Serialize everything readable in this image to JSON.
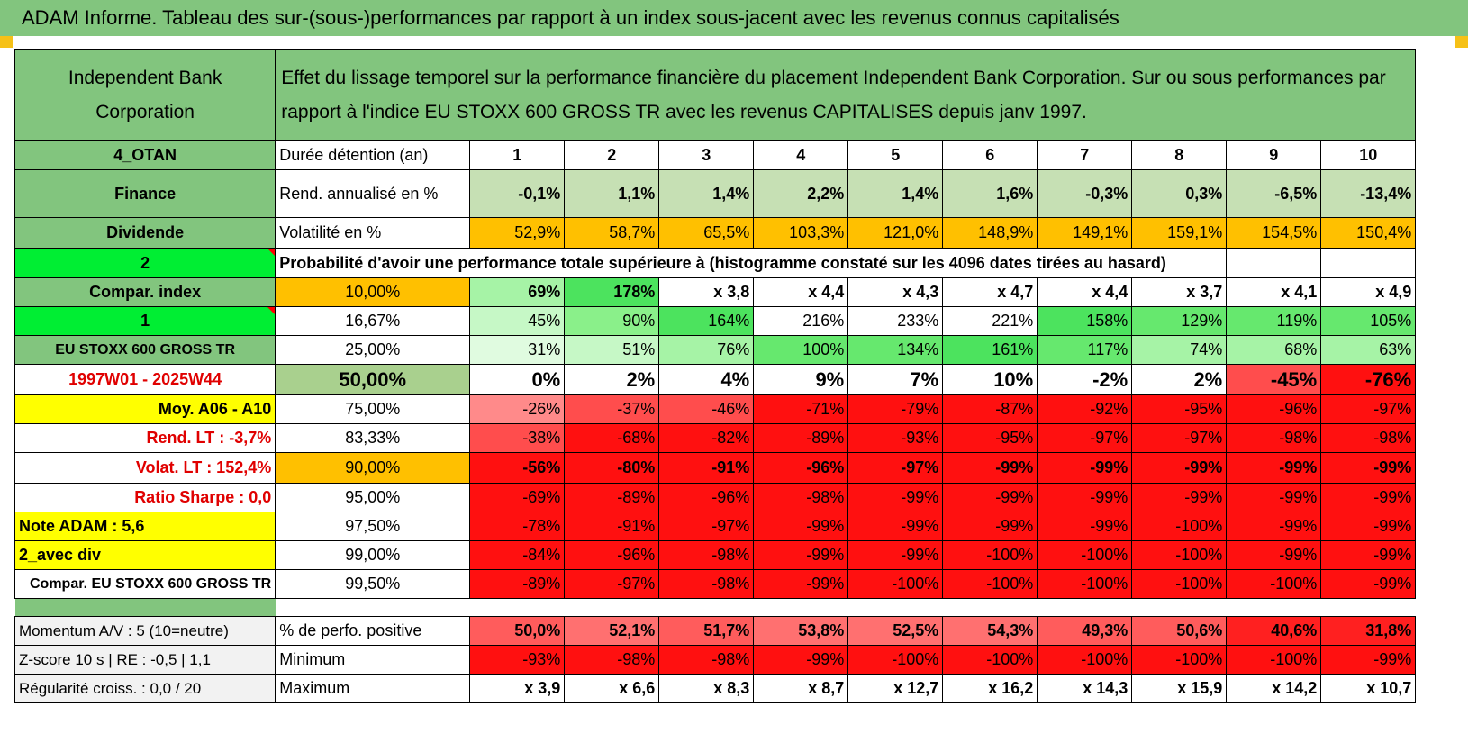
{
  "title": "ADAM Informe. Tableau des sur-(sous-)performances par rapport à un index sous-jacent avec les revenus connus capitalisés",
  "header": {
    "company": "Independent Bank Corporation",
    "description": "Effet du lissage temporel sur la performance financière du placement Independent Bank Corporation. Sur ou sous performances par rapport à l'indice EU STOXX 600 GROSS TR avec les revenus CAPITALISES depuis janv 1997."
  },
  "side": {
    "code": "4_OTAN",
    "sector": "Finance",
    "type": "Dividende",
    "num2": "2",
    "compar_index": "Compar. index",
    "num1": "1",
    "index_name": "EU STOXX 600 GROSS TR",
    "period": "1997W01 - 2025W44",
    "moy": "Moy. A06 - A10",
    "rend_lt": "Rend. LT :   -3,7%",
    "volat_lt": "Volat. LT :    152,4%",
    "sharpe": "Ratio Sharpe :    0,0",
    "note": "Note ADAM : 5,6",
    "avec_div": "2_avec div",
    "compar_full": "Compar. EU STOXX 600 GROSS TR"
  },
  "rows": {
    "duree_label": "Durée détention (an)",
    "years": [
      "1",
      "2",
      "3",
      "4",
      "5",
      "6",
      "7",
      "8",
      "9",
      "10"
    ],
    "rend_label": "Rend. annualisé en %",
    "rend": [
      "-0,1%",
      "1,1%",
      "1,4%",
      "2,2%",
      "1,4%",
      "1,6%",
      "-0,3%",
      "0,3%",
      "-6,5%",
      "-13,4%"
    ],
    "vol_label": "Volatilité en %",
    "vol": [
      "52,9%",
      "58,7%",
      "65,5%",
      "103,3%",
      "121,0%",
      "148,9%",
      "149,1%",
      "159,1%",
      "154,5%",
      "150,4%"
    ],
    "prob_label": "Probabilité d'avoir une performance totale supérieure à (histogramme constaté sur les 4096 dates tirées au hasard)"
  },
  "quantiles": [
    {
      "p": "10,00%",
      "vals": [
        "69%",
        "178%",
        "x 3,8",
        "x 4,4",
        "x 4,3",
        "x 4,7",
        "x 4,4",
        "x 3,7",
        "x 4,1",
        "x 4,9"
      ]
    },
    {
      "p": "16,67%",
      "vals": [
        "45%",
        "90%",
        "164%",
        "216%",
        "233%",
        "221%",
        "158%",
        "129%",
        "119%",
        "105%"
      ]
    },
    {
      "p": "25,00%",
      "vals": [
        "31%",
        "51%",
        "76%",
        "100%",
        "134%",
        "161%",
        "117%",
        "74%",
        "68%",
        "63%"
      ]
    },
    {
      "p": "50,00%",
      "vals": [
        "0%",
        "2%",
        "4%",
        "9%",
        "7%",
        "10%",
        "-2%",
        "2%",
        "-45%",
        "-76%"
      ]
    },
    {
      "p": "75,00%",
      "vals": [
        "-26%",
        "-37%",
        "-46%",
        "-71%",
        "-79%",
        "-87%",
        "-92%",
        "-95%",
        "-96%",
        "-97%"
      ]
    },
    {
      "p": "83,33%",
      "vals": [
        "-38%",
        "-68%",
        "-82%",
        "-89%",
        "-93%",
        "-95%",
        "-97%",
        "-97%",
        "-98%",
        "-98%"
      ]
    },
    {
      "p": "90,00%",
      "vals": [
        "-56%",
        "-80%",
        "-91%",
        "-96%",
        "-97%",
        "-99%",
        "-99%",
        "-99%",
        "-99%",
        "-99%"
      ]
    },
    {
      "p": "95,00%",
      "vals": [
        "-69%",
        "-89%",
        "-96%",
        "-98%",
        "-99%",
        "-99%",
        "-99%",
        "-99%",
        "-99%",
        "-99%"
      ]
    },
    {
      "p": "97,50%",
      "vals": [
        "-78%",
        "-91%",
        "-97%",
        "-99%",
        "-99%",
        "-99%",
        "-99%",
        "-100%",
        "-99%",
        "-99%"
      ]
    },
    {
      "p": "99,00%",
      "vals": [
        "-84%",
        "-96%",
        "-98%",
        "-99%",
        "-99%",
        "-100%",
        "-100%",
        "-100%",
        "-99%",
        "-99%"
      ]
    },
    {
      "p": "99,50%",
      "vals": [
        "-89%",
        "-97%",
        "-98%",
        "-99%",
        "-100%",
        "-100%",
        "-100%",
        "-100%",
        "-100%",
        "-99%"
      ]
    }
  ],
  "footer": {
    "momentum": "Momentum A/V : 5 (10=neutre)",
    "zscore": "Z-score 10 s | RE : -0,5 | 1,1",
    "regul": "Régularité croiss. : 0,0 / 20",
    "pos_label": "% de perfo. positive",
    "pos": [
      "50,0%",
      "52,1%",
      "51,7%",
      "53,8%",
      "52,5%",
      "54,3%",
      "49,3%",
      "50,6%",
      "40,6%",
      "31,8%"
    ],
    "min_label": "Minimum",
    "min": [
      "-93%",
      "-98%",
      "-98%",
      "-99%",
      "-100%",
      "-100%",
      "-100%",
      "-100%",
      "-100%",
      "-99%"
    ],
    "max_label": "Maximum",
    "max": [
      "x 3,9",
      "x 6,6",
      "x 8,3",
      "x 8,7",
      "x 12,7",
      "x 16,2",
      "x 14,3",
      "x 15,9",
      "x 14,2",
      "x 10,7"
    ]
  },
  "colors": {
    "title_green": "#82c57e",
    "bright_green": "#00ee33",
    "yellow": "#ffff00",
    "orange": "#ffc000",
    "red": "#ff0000"
  }
}
